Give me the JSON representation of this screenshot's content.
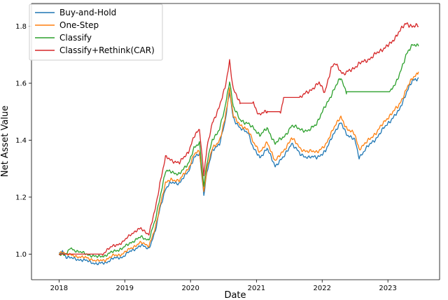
{
  "chart_data": {
    "type": "line",
    "title": "",
    "xlabel": "Date",
    "ylabel": "Net Asset Value",
    "xlim": [
      "2017-08-01",
      "2023-10-15"
    ],
    "ylim": [
      0.91,
      1.88
    ],
    "x_ticks": [
      "2018",
      "2019",
      "2020",
      "2021",
      "2022",
      "2023"
    ],
    "y_ticks": [
      "1.0",
      "1.2",
      "1.4",
      "1.6",
      "1.8"
    ],
    "grid": false,
    "legend_position": "top-left",
    "series": [
      {
        "name": "Buy-and-Hold",
        "color": "#1f77b4",
        "points": [
          [
            "2018-01-01",
            1.0
          ],
          [
            "2018-01-20",
            1.01
          ],
          [
            "2018-02-10",
            0.99
          ],
          [
            "2018-03-15",
            0.985
          ],
          [
            "2018-05-01",
            0.98
          ],
          [
            "2018-06-15",
            0.975
          ],
          [
            "2018-08-01",
            0.965
          ],
          [
            "2018-09-15",
            0.97
          ],
          [
            "2018-11-01",
            0.985
          ],
          [
            "2018-12-20",
            0.99
          ],
          [
            "2019-02-01",
            1.01
          ],
          [
            "2019-04-01",
            1.03
          ],
          [
            "2019-05-15",
            1.02
          ],
          [
            "2019-06-20",
            1.08
          ],
          [
            "2019-07-15",
            1.16
          ],
          [
            "2019-08-15",
            1.23
          ],
          [
            "2019-09-15",
            1.25
          ],
          [
            "2019-11-01",
            1.25
          ],
          [
            "2019-12-20",
            1.29
          ],
          [
            "2020-01-20",
            1.34
          ],
          [
            "2020-02-20",
            1.35
          ],
          [
            "2020-03-15",
            1.21
          ],
          [
            "2020-04-01",
            1.29
          ],
          [
            "2020-05-01",
            1.36
          ],
          [
            "2020-06-10",
            1.39
          ],
          [
            "2020-07-10",
            1.46
          ],
          [
            "2020-08-05",
            1.57
          ],
          [
            "2020-08-25",
            1.48
          ],
          [
            "2020-10-01",
            1.44
          ],
          [
            "2020-11-15",
            1.43
          ],
          [
            "2020-12-15",
            1.37
          ],
          [
            "2021-01-20",
            1.34
          ],
          [
            "2021-03-01",
            1.37
          ],
          [
            "2021-04-15",
            1.31
          ],
          [
            "2021-06-01",
            1.34
          ],
          [
            "2021-07-15",
            1.39
          ],
          [
            "2021-09-01",
            1.35
          ],
          [
            "2021-10-15",
            1.34
          ],
          [
            "2021-12-01",
            1.34
          ],
          [
            "2022-01-20",
            1.36
          ],
          [
            "2022-03-01",
            1.42
          ],
          [
            "2022-04-15",
            1.46
          ],
          [
            "2022-05-20",
            1.42
          ],
          [
            "2022-07-01",
            1.4
          ],
          [
            "2022-07-25",
            1.34
          ],
          [
            "2022-09-01",
            1.37
          ],
          [
            "2022-11-01",
            1.41
          ],
          [
            "2023-01-01",
            1.46
          ],
          [
            "2023-03-01",
            1.5
          ],
          [
            "2023-04-15",
            1.57
          ],
          [
            "2023-05-20",
            1.61
          ],
          [
            "2023-06-20",
            1.62
          ]
        ]
      },
      {
        "name": "One-Step",
        "color": "#ff7f0e",
        "points": [
          [
            "2018-01-01",
            1.0
          ],
          [
            "2018-01-20",
            1.01
          ],
          [
            "2018-02-10",
            1.0
          ],
          [
            "2018-03-15",
            0.995
          ],
          [
            "2018-05-01",
            0.99
          ],
          [
            "2018-06-15",
            0.985
          ],
          [
            "2018-08-01",
            0.975
          ],
          [
            "2018-09-15",
            0.98
          ],
          [
            "2018-11-01",
            0.995
          ],
          [
            "2018-12-20",
            1.0
          ],
          [
            "2019-02-01",
            1.02
          ],
          [
            "2019-04-01",
            1.04
          ],
          [
            "2019-05-15",
            1.03
          ],
          [
            "2019-06-20",
            1.09
          ],
          [
            "2019-07-15",
            1.17
          ],
          [
            "2019-08-15",
            1.25
          ],
          [
            "2019-09-15",
            1.26
          ],
          [
            "2019-11-01",
            1.26
          ],
          [
            "2019-12-20",
            1.3
          ],
          [
            "2020-01-20",
            1.35
          ],
          [
            "2020-02-20",
            1.36
          ],
          [
            "2020-03-15",
            1.22
          ],
          [
            "2020-04-01",
            1.3
          ],
          [
            "2020-05-01",
            1.37
          ],
          [
            "2020-06-10",
            1.4
          ],
          [
            "2020-07-10",
            1.47
          ],
          [
            "2020-08-05",
            1.58
          ],
          [
            "2020-08-25",
            1.49
          ],
          [
            "2020-10-01",
            1.45
          ],
          [
            "2020-11-15",
            1.44
          ],
          [
            "2020-12-15",
            1.39
          ],
          [
            "2021-01-20",
            1.36
          ],
          [
            "2021-03-01",
            1.39
          ],
          [
            "2021-04-15",
            1.33
          ],
          [
            "2021-06-01",
            1.36
          ],
          [
            "2021-07-15",
            1.41
          ],
          [
            "2021-09-01",
            1.37
          ],
          [
            "2021-10-15",
            1.36
          ],
          [
            "2021-12-01",
            1.36
          ],
          [
            "2022-01-20",
            1.38
          ],
          [
            "2022-03-01",
            1.44
          ],
          [
            "2022-04-15",
            1.48
          ],
          [
            "2022-05-20",
            1.44
          ],
          [
            "2022-07-01",
            1.42
          ],
          [
            "2022-07-25",
            1.37
          ],
          [
            "2022-09-01",
            1.39
          ],
          [
            "2022-11-01",
            1.43
          ],
          [
            "2023-01-01",
            1.48
          ],
          [
            "2023-03-01",
            1.52
          ],
          [
            "2023-04-15",
            1.58
          ],
          [
            "2023-05-20",
            1.62
          ],
          [
            "2023-06-20",
            1.64
          ]
        ]
      },
      {
        "name": "Classify",
        "color": "#2ca02c",
        "points": [
          [
            "2018-01-01",
            1.0
          ],
          [
            "2018-01-20",
            1.0
          ],
          [
            "2018-02-15",
            1.0
          ],
          [
            "2018-03-01",
            1.02
          ],
          [
            "2018-04-15",
            1.01
          ],
          [
            "2018-06-01",
            1.0
          ],
          [
            "2018-08-01",
            0.99
          ],
          [
            "2018-09-15",
            0.995
          ],
          [
            "2018-11-01",
            1.01
          ],
          [
            "2018-12-20",
            1.02
          ],
          [
            "2019-02-01",
            1.04
          ],
          [
            "2019-04-01",
            1.06
          ],
          [
            "2019-05-15",
            1.05
          ],
          [
            "2019-06-20",
            1.12
          ],
          [
            "2019-07-15",
            1.2
          ],
          [
            "2019-08-15",
            1.29
          ],
          [
            "2019-09-15",
            1.29
          ],
          [
            "2019-11-01",
            1.28
          ],
          [
            "2019-12-20",
            1.32
          ],
          [
            "2020-01-20",
            1.37
          ],
          [
            "2020-02-20",
            1.39
          ],
          [
            "2020-03-15",
            1.24
          ],
          [
            "2020-04-01",
            1.32
          ],
          [
            "2020-05-01",
            1.4
          ],
          [
            "2020-06-10",
            1.44
          ],
          [
            "2020-07-10",
            1.51
          ],
          [
            "2020-08-05",
            1.61
          ],
          [
            "2020-08-25",
            1.52
          ],
          [
            "2020-10-01",
            1.47
          ],
          [
            "2020-11-15",
            1.46
          ],
          [
            "2020-12-15",
            1.44
          ],
          [
            "2021-01-20",
            1.42
          ],
          [
            "2021-03-01",
            1.44
          ],
          [
            "2021-04-15",
            1.39
          ],
          [
            "2021-06-01",
            1.41
          ],
          [
            "2021-07-15",
            1.45
          ],
          [
            "2021-09-01",
            1.44
          ],
          [
            "2021-10-15",
            1.43
          ],
          [
            "2021-12-01",
            1.46
          ],
          [
            "2022-01-20",
            1.52
          ],
          [
            "2022-03-01",
            1.57
          ],
          [
            "2022-04-15",
            1.62
          ],
          [
            "2022-05-15",
            1.57
          ],
          [
            "2022-05-16",
            1.57
          ],
          [
            "2022-11-01",
            1.57
          ],
          [
            "2023-01-15",
            1.57
          ],
          [
            "2023-02-15",
            1.6
          ],
          [
            "2023-03-15",
            1.65
          ],
          [
            "2023-04-15",
            1.7
          ],
          [
            "2023-05-20",
            1.74
          ],
          [
            "2023-06-20",
            1.73
          ]
        ]
      },
      {
        "name": "Classify+Rethink(CAR)",
        "color": "#d62728",
        "points": [
          [
            "2018-01-01",
            1.0
          ],
          [
            "2018-01-15",
            1.0
          ],
          [
            "2018-09-01",
            1.0
          ],
          [
            "2018-09-15",
            1.01
          ],
          [
            "2018-11-01",
            1.03
          ],
          [
            "2018-12-20",
            1.04
          ],
          [
            "2019-02-01",
            1.07
          ],
          [
            "2019-04-01",
            1.09
          ],
          [
            "2019-05-15",
            1.07
          ],
          [
            "2019-06-20",
            1.16
          ],
          [
            "2019-07-15",
            1.25
          ],
          [
            "2019-08-15",
            1.34
          ],
          [
            "2019-09-15",
            1.33
          ],
          [
            "2019-11-01",
            1.32
          ],
          [
            "2019-12-20",
            1.36
          ],
          [
            "2020-01-20",
            1.41
          ],
          [
            "2020-02-20",
            1.44
          ],
          [
            "2020-03-15",
            1.28
          ],
          [
            "2020-04-01",
            1.37
          ],
          [
            "2020-05-01",
            1.46
          ],
          [
            "2020-06-10",
            1.52
          ],
          [
            "2020-07-10",
            1.58
          ],
          [
            "2020-08-05",
            1.68
          ],
          [
            "2020-08-25",
            1.58
          ],
          [
            "2020-10-01",
            1.53
          ],
          [
            "2020-10-02",
            1.53
          ],
          [
            "2020-12-15",
            1.53
          ],
          [
            "2021-01-15",
            1.49
          ],
          [
            "2021-03-01",
            1.5
          ],
          [
            "2021-03-02",
            1.5
          ],
          [
            "2021-05-15",
            1.5
          ],
          [
            "2021-06-01",
            1.55
          ],
          [
            "2021-09-01",
            1.55
          ],
          [
            "2021-10-15",
            1.57
          ],
          [
            "2021-12-15",
            1.6
          ],
          [
            "2022-01-15",
            1.57
          ],
          [
            "2022-02-20",
            1.65
          ],
          [
            "2022-03-15",
            1.67
          ],
          [
            "2022-05-01",
            1.63
          ],
          [
            "2022-06-15",
            1.65
          ],
          [
            "2022-08-01",
            1.67
          ],
          [
            "2022-10-01",
            1.69
          ],
          [
            "2022-12-01",
            1.72
          ],
          [
            "2023-01-20",
            1.74
          ],
          [
            "2023-03-01",
            1.78
          ],
          [
            "2023-04-15",
            1.81
          ],
          [
            "2023-05-20",
            1.8
          ],
          [
            "2023-06-20",
            1.8
          ]
        ]
      }
    ]
  }
}
